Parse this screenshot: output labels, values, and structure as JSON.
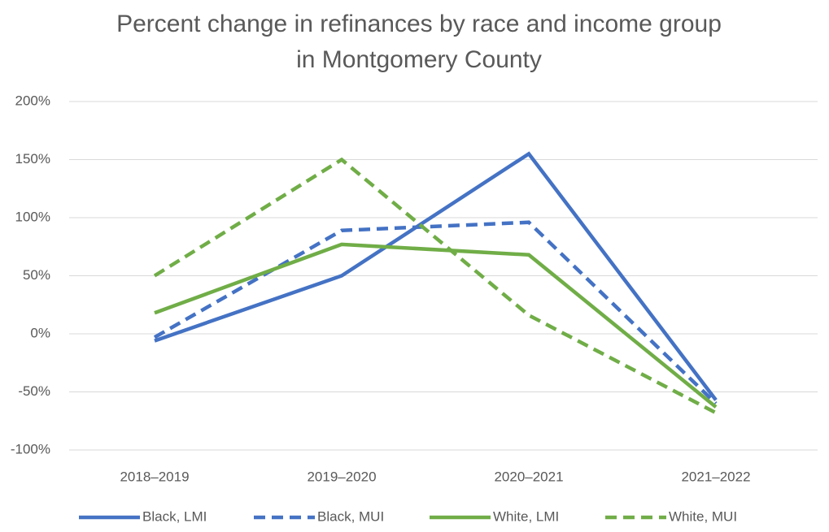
{
  "chart_data": {
    "type": "line",
    "title": "Percent change in refinances by race and income group in Montgomery County",
    "categories": [
      "2018–2019",
      "2019–2020",
      "2020–2021",
      "2021–2022"
    ],
    "series": [
      {
        "name": "Black, LMI",
        "color": "#4472c4",
        "style": "solid",
        "values": [
          -6,
          50,
          155,
          -57
        ]
      },
      {
        "name": "Black, MUI",
        "color": "#4472c4",
        "style": "dashed",
        "values": [
          -3,
          89,
          96,
          -60
        ]
      },
      {
        "name": "White, LMI",
        "color": "#70ad47",
        "style": "solid",
        "values": [
          18,
          77,
          68,
          -63
        ]
      },
      {
        "name": "White, MUI",
        "color": "#70ad47",
        "style": "dashed",
        "values": [
          50,
          150,
          16,
          -68
        ]
      }
    ],
    "ylim": [
      -100,
      200
    ],
    "yticks": [
      {
        "value": -100,
        "label": "-100%"
      },
      {
        "value": -50,
        "label": "-50%"
      },
      {
        "value": 0,
        "label": "0%"
      },
      {
        "value": 50,
        "label": "50%"
      },
      {
        "value": 100,
        "label": "100%"
      },
      {
        "value": 150,
        "label": "150%"
      },
      {
        "value": 200,
        "label": "200%"
      }
    ],
    "grid": true,
    "legend": "bottom"
  }
}
